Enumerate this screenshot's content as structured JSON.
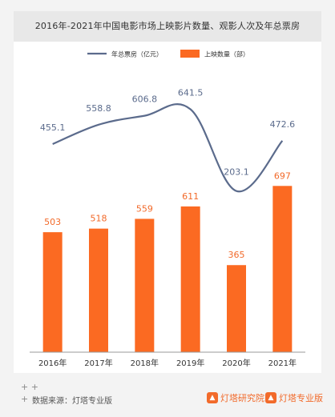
{
  "title": "2016年-2021年中国电影市场上映影片数量、观影人次及年总票房",
  "footer": {
    "source": "数据来源：灯塔专业版",
    "logos": [
      "灯塔研究院",
      "灯塔专业版"
    ]
  },
  "colors": {
    "line": "#5b6b8c",
    "bar": "#fb6a22",
    "bar_label": "#f26a2a",
    "line_label": "#5b6b8c"
  },
  "chart_data": {
    "type": "bar",
    "categories": [
      "2016年",
      "2017年",
      "2018年",
      "2019年",
      "2020年",
      "2021年"
    ],
    "series": [
      {
        "name": "上映数量（部）",
        "type": "bar",
        "values": [
          503,
          518,
          559,
          611,
          365,
          697
        ]
      },
      {
        "name": "年总票房（亿元）",
        "type": "line",
        "values": [
          455.1,
          558.8,
          606.8,
          641.5,
          203.1,
          472.6
        ]
      }
    ],
    "legend_position": "top-center",
    "grid": false
  }
}
